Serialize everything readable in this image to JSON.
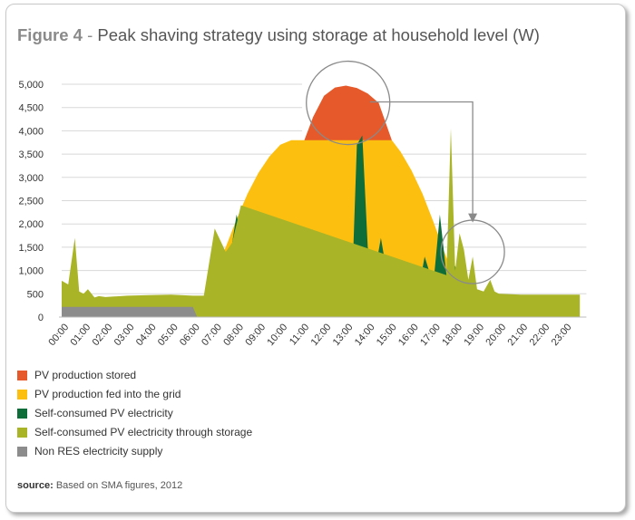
{
  "figure": {
    "number_label": "Figure 4",
    "separator": "-",
    "title_text": "Peak shaving strategy using storage at household level (W)"
  },
  "source": {
    "label": "source:",
    "text": "Based on SMA figures, 2012"
  },
  "colors": {
    "stored": "#e5592a",
    "fed_into_grid": "#fdbf0f",
    "self_consumed": "#0f6d3a",
    "through_storage": "#a9b526",
    "non_res": "#8c8c8c"
  },
  "legend": [
    {
      "label": "PV production stored",
      "color": "#e5592a"
    },
    {
      "label": "PV production fed into the grid",
      "color": "#fdbf0f"
    },
    {
      "label": "Self-consumed PV electricity",
      "color": "#0f6d3a"
    },
    {
      "label": "Self-consumed PV electricity through storage",
      "color": "#a9b526"
    },
    {
      "label": "Non RES electricity supply",
      "color": "#8c8c8c"
    }
  ],
  "chart_data": {
    "type": "area",
    "title": "Peak shaving strategy using storage at household level (W)",
    "ylim": [
      0,
      5000
    ],
    "y_ticks": [
      "0",
      "500",
      "1,000",
      "1,500",
      "2,000",
      "2,500",
      "3,000",
      "3,500",
      "4,000",
      "4,500",
      "5,000"
    ],
    "y_tick_values": [
      0,
      500,
      1000,
      1500,
      2000,
      2500,
      3000,
      3500,
      4000,
      4500,
      5000
    ],
    "x_ticks": [
      "00:00",
      "01:00",
      "02:00",
      "03:00",
      "04:00",
      "05:00",
      "06:00",
      "07:00",
      "08:00",
      "09:00",
      "10:00",
      "11:00",
      "12:00",
      "13:00",
      "14:00",
      "15:00",
      "16:00",
      "17:00",
      "18:00",
      "19:00",
      "20:00",
      "21:00",
      "22:00",
      "23:00"
    ],
    "grid": "horizontal",
    "grid_cap": 3800,
    "series": [
      {
        "name": "PV production stored",
        "color": "#e5592a",
        "x": [
          11.1,
          11.5,
          12.0,
          12.5,
          13.0,
          13.5,
          14.0,
          14.5,
          15.1
        ],
        "values": [
          3800,
          4300,
          4750,
          4930,
          4970,
          4920,
          4800,
          4600,
          3800
        ]
      },
      {
        "name": "PV production fed into the grid",
        "color": "#fdbf0f",
        "x": [
          6.5,
          7.0,
          7.5,
          8.0,
          8.5,
          9.0,
          9.5,
          10.0,
          10.5,
          11.1,
          15.1,
          15.5,
          16.0,
          16.5,
          17.0,
          17.5,
          18.0,
          18.5,
          19.0,
          19.5
        ],
        "values": [
          400,
          900,
          1500,
          2100,
          2650,
          3100,
          3450,
          3700,
          3800,
          3800,
          3800,
          3550,
          3150,
          2650,
          2050,
          1400,
          800,
          380,
          150,
          0
        ]
      },
      {
        "name": "Self-consumed PV electricity",
        "color": "#0f6d3a",
        "x": [
          6.2,
          6.5,
          7.0,
          7.3,
          7.7,
          8.0,
          8.3,
          8.7,
          9.0,
          9.3,
          9.6,
          10.0,
          10.3,
          10.6,
          11.0,
          11.3,
          11.6,
          12.0,
          12.3,
          12.6,
          13.0,
          13.3,
          13.5,
          13.75,
          14.0,
          14.3,
          14.6,
          15.0,
          15.3,
          15.7,
          16.0,
          16.3,
          16.6,
          17.0,
          17.3,
          17.6,
          18.0,
          18.5,
          19.0,
          19.5
        ],
        "values": [
          0,
          80,
          400,
          1000,
          1300,
          2200,
          1500,
          700,
          1600,
          2000,
          1100,
          1800,
          1200,
          1500,
          700,
          1600,
          1100,
          1300,
          500,
          1300,
          700,
          900,
          3700,
          3900,
          1500,
          900,
          1700,
          600,
          900,
          800,
          1000,
          500,
          1300,
          700,
          2200,
          900,
          1100,
          300,
          50,
          0
        ]
      },
      {
        "name": "Self-consumed PV electricity through storage",
        "color": "#a9b526",
        "x": [
          0.0,
          0.3,
          0.6,
          0.8,
          1.0,
          1.2,
          1.5,
          1.7,
          2.0,
          3.0,
          4.0,
          5.0,
          6.0,
          6.5,
          7.0,
          7.5,
          7.8,
          8.2,
          17.6,
          17.8,
          18.0,
          18.2,
          18.4,
          18.6,
          18.8,
          19.0,
          19.3,
          19.6,
          19.8,
          20.0,
          21.0,
          22.0,
          23.0,
          23.7
        ],
        "values": [
          780,
          700,
          1700,
          550,
          500,
          600,
          420,
          450,
          430,
          460,
          470,
          480,
          460,
          460,
          1900,
          1400,
          1600,
          2400,
          900,
          4050,
          1000,
          1800,
          1450,
          800,
          1300,
          600,
          550,
          800,
          550,
          500,
          480,
          480,
          480,
          480
        ]
      },
      {
        "name": "Non RES electricity supply",
        "color": "#8c8c8c",
        "x": [
          0.0,
          6.0,
          6.2
        ],
        "values": [
          220,
          220,
          0
        ]
      }
    ],
    "annotations": [
      {
        "type": "circle",
        "center": [
          13.1,
          4600
        ],
        "radius": "large"
      },
      {
        "type": "circle",
        "center": [
          18.8,
          1400
        ],
        "radius": "medium"
      },
      {
        "type": "arrow",
        "from": [
          14.1,
          4620
        ],
        "to": [
          18.8,
          2050
        ]
      }
    ]
  }
}
